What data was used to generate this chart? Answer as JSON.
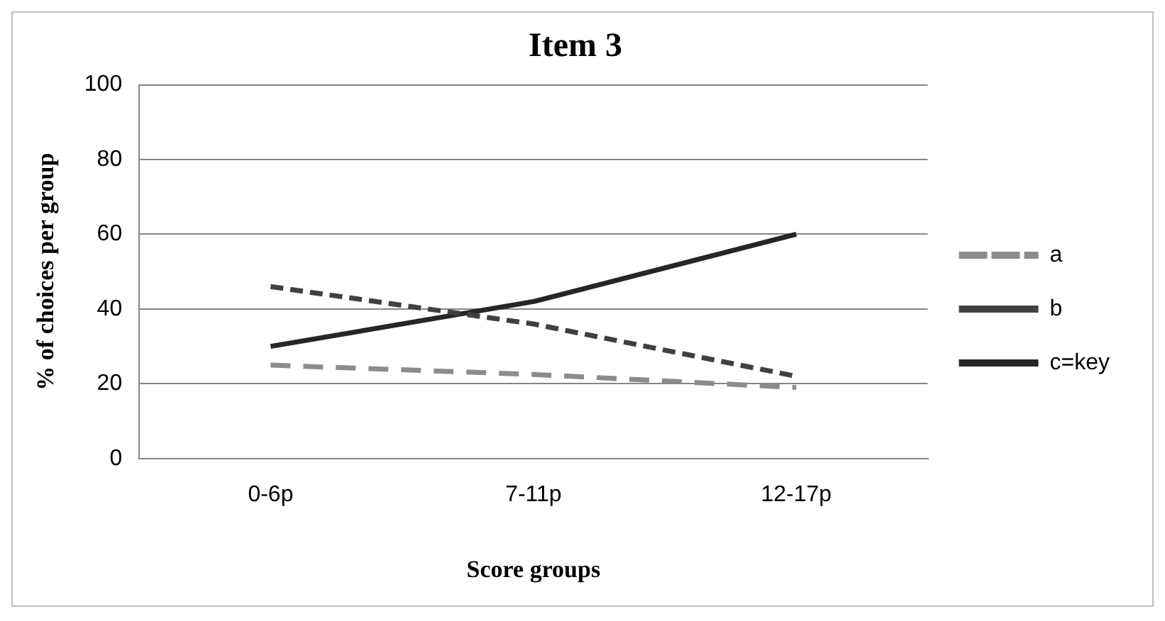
{
  "chart_data": {
    "type": "line",
    "title": "Item 3",
    "xlabel": "Score groups",
    "ylabel": "% of choices per group",
    "categories": [
      "0-6p",
      "7-11p",
      "12-17p"
    ],
    "series": [
      {
        "name": "a",
        "color": "#8c8c8c",
        "values": [
          25,
          22.5,
          19
        ],
        "line_style": "dashed"
      },
      {
        "name": "b",
        "color": "#404040",
        "values": [
          46,
          36,
          22
        ],
        "line_style": "dashed"
      },
      {
        "name": "c=key",
        "color": "#262626",
        "values": [
          30,
          42,
          60
        ],
        "line_style": "solid"
      }
    ],
    "ylim": [
      0,
      100
    ],
    "yticks": [
      0,
      20,
      40,
      60,
      80,
      100
    ],
    "grid": "y",
    "legend": "right",
    "marker": "none"
  }
}
